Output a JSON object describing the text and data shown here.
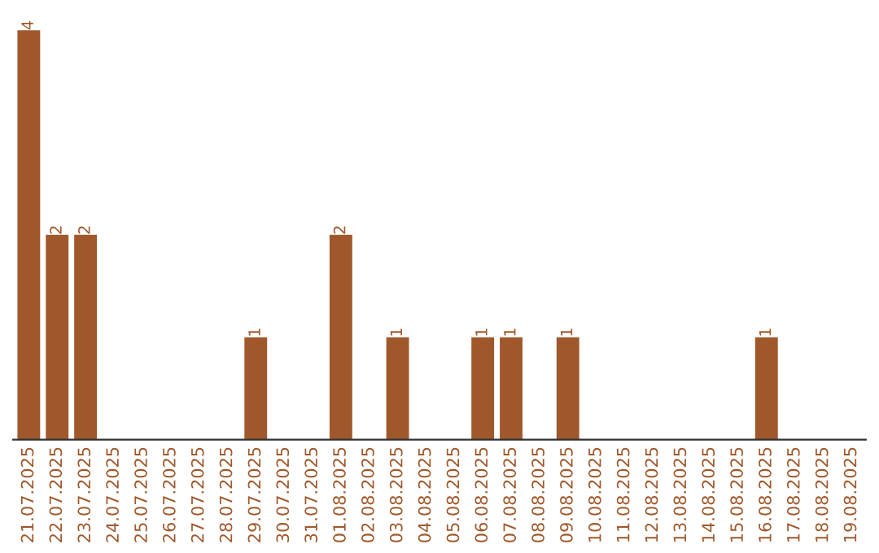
{
  "chart_data": {
    "type": "bar",
    "categories": [
      "21.07.2025",
      "22.07.2025",
      "23.07.2025",
      "24.07.2025",
      "25.07.2025",
      "26.07.2025",
      "27.07.2025",
      "28.07.2025",
      "29.07.2025",
      "30.07.2025",
      "31.07.2025",
      "01.08.2025",
      "02.08.2025",
      "03.08.2025",
      "04.08.2025",
      "05.08.2025",
      "06.08.2025",
      "07.08.2025",
      "08.08.2025",
      "09.08.2025",
      "10.08.2025",
      "11.08.2025",
      "12.08.2025",
      "13.08.2025",
      "14.08.2025",
      "15.08.2025",
      "16.08.2025",
      "17.08.2025",
      "18.08.2025",
      "19.08.2025"
    ],
    "values": [
      4,
      2,
      2,
      0,
      0,
      0,
      0,
      0,
      1,
      0,
      0,
      2,
      0,
      1,
      0,
      0,
      1,
      1,
      0,
      1,
      0,
      0,
      0,
      0,
      0,
      0,
      1,
      0,
      0,
      0
    ],
    "value_labels": [
      "4",
      "2",
      "2",
      null,
      null,
      null,
      null,
      null,
      "1",
      null,
      null,
      "2",
      null,
      "1",
      null,
      null,
      "1",
      "1",
      null,
      "1",
      null,
      null,
      null,
      null,
      null,
      null,
      "1",
      null,
      null,
      null
    ],
    "color": "#a0582b",
    "grid": false,
    "legend": false
  }
}
